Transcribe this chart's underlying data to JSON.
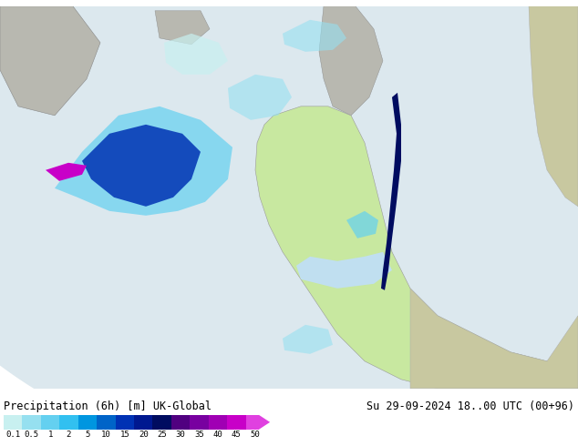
{
  "title_left": "Precipitation (6h) [m] UK-Global",
  "title_right": "Su 29-09-2024 18..00 UTC (00+96)",
  "colorbar_values": [
    "0.1",
    "0.5",
    "1",
    "2",
    "5",
    "10",
    "15",
    "20",
    "25",
    "30",
    "35",
    "40",
    "45",
    "50"
  ],
  "colorbar_colors": [
    "#c8f0f0",
    "#96e0f0",
    "#64d0f0",
    "#32c0f0",
    "#0096e0",
    "#0064c8",
    "#0032b4",
    "#001890",
    "#000c60",
    "#500080",
    "#7800a0",
    "#a000b4",
    "#c800c8",
    "#e040e0"
  ],
  "arrow_color": "#e040e0",
  "outside_domain_color": "#c8c8a0",
  "ocean_color": "#e8f4f8",
  "land_europe_color": "#c8e8a0",
  "land_gray_color": "#b8b8b0",
  "label_fontsize": 8.5,
  "title_fontsize": 8.5,
  "fig_width": 6.34,
  "fig_height": 4.9,
  "dpi": 100
}
